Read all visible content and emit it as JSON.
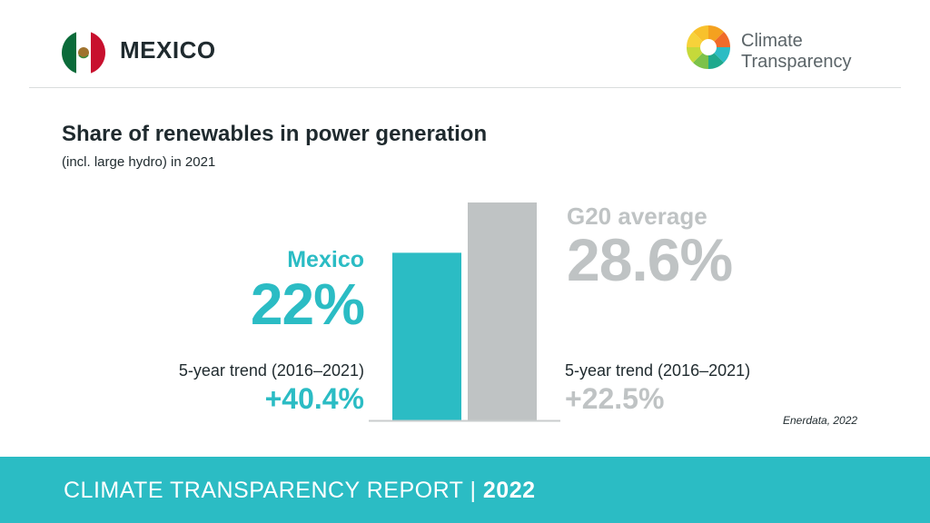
{
  "header": {
    "country": "MEXICO",
    "logo_line1": "Climate",
    "logo_line2": "Transparency"
  },
  "chart_data": {
    "type": "bar",
    "title": "Share of renewables in power generation",
    "subtitle": "(incl. large hydro) in 2021",
    "categories": [
      "Mexico",
      "G20 average"
    ],
    "values": [
      22,
      28.6
    ],
    "value_labels": [
      "22%",
      "28.6%"
    ],
    "trend_label": "5-year trend (2016–2021)",
    "trends": [
      "+40.4%",
      "+22.5%"
    ],
    "colors": [
      "#2bbcc4",
      "#bfc3c4"
    ],
    "grid": false,
    "legend": "none"
  },
  "source": "Enerdata, 2022",
  "footer": {
    "report_label": "CLIMATE TRANSPARENCY REPORT",
    "separator": "|",
    "year": "2022"
  }
}
